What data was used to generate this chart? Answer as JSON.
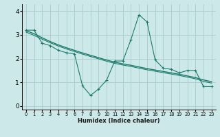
{
  "xlabel": "Humidex (Indice chaleur)",
  "background_color": "#cce8e8",
  "grid_color": "#aacccc",
  "line_color": "#1a7a6a",
  "x_ticks": [
    0,
    1,
    2,
    3,
    4,
    5,
    6,
    7,
    8,
    9,
    10,
    11,
    12,
    13,
    14,
    15,
    16,
    17,
    18,
    19,
    20,
    21,
    22,
    23
  ],
  "y_ticks": [
    0,
    1,
    2,
    3,
    4
  ],
  "ylim": [
    -0.15,
    4.3
  ],
  "xlim": [
    -0.5,
    23.5
  ],
  "series1_x": [
    0,
    1,
    2,
    3,
    4,
    5,
    6,
    7,
    8,
    9,
    10,
    11,
    12,
    13,
    14,
    15,
    16,
    17,
    18,
    19,
    20,
    21,
    22,
    23
  ],
  "series1_y": [
    3.2,
    3.2,
    2.65,
    2.55,
    2.35,
    2.25,
    2.2,
    0.85,
    0.45,
    0.72,
    1.1,
    1.9,
    1.9,
    2.8,
    3.85,
    3.55,
    1.95,
    1.6,
    1.55,
    1.4,
    1.5,
    1.5,
    0.82,
    0.82
  ],
  "series2_x": [
    0,
    1,
    2,
    3,
    4,
    5,
    6,
    7,
    8,
    9,
    10,
    11,
    12,
    13,
    14,
    15,
    16,
    17,
    18,
    19,
    20,
    21,
    22,
    23
  ],
  "series2_y": [
    3.18,
    3.05,
    2.88,
    2.72,
    2.58,
    2.46,
    2.35,
    2.24,
    2.14,
    2.04,
    1.94,
    1.85,
    1.78,
    1.72,
    1.65,
    1.58,
    1.52,
    1.46,
    1.4,
    1.34,
    1.27,
    1.2,
    1.1,
    1.03
  ],
  "series3_x": [
    0,
    1,
    2,
    3,
    4,
    5,
    6,
    7,
    8,
    9,
    10,
    11,
    12,
    13,
    14,
    15,
    16,
    17,
    18,
    19,
    20,
    21,
    22,
    23
  ],
  "series3_y": [
    3.12,
    2.98,
    2.82,
    2.67,
    2.53,
    2.41,
    2.3,
    2.19,
    2.09,
    1.99,
    1.89,
    1.8,
    1.73,
    1.67,
    1.6,
    1.53,
    1.47,
    1.41,
    1.35,
    1.29,
    1.22,
    1.15,
    1.04,
    0.97
  ]
}
